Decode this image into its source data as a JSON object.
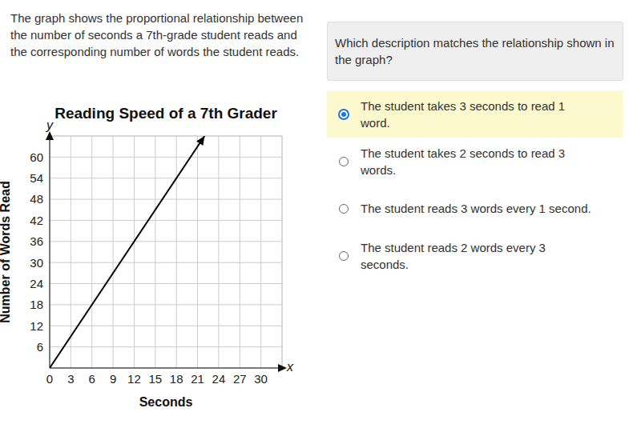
{
  "prompt": "The graph shows the proportional relationship between the number of seconds a 7th-grade student reads and the corresponding number of words the student reads.",
  "question": "Which description matches the relationship shown in the graph?",
  "options": [
    {
      "text": "The student takes 3 seconds to read 1 word.",
      "selected": true
    },
    {
      "text": "The student takes 2 seconds to read 3 words.",
      "selected": false
    },
    {
      "text": "The student reads 3 words every 1 second.",
      "selected": false
    },
    {
      "text": "The student reads 2 words every 3 seconds.",
      "selected": false
    }
  ],
  "chart_data": {
    "type": "line",
    "title": "Reading Speed of a 7th Grader",
    "x_label": "Seconds",
    "y_label": "Number of Words Read",
    "axis_letters": {
      "x": "x",
      "y": "y"
    },
    "x": [
      0,
      22
    ],
    "values": [
      0,
      66
    ],
    "color": "#000000",
    "xlim": [
      0,
      33
    ],
    "ylim": [
      0,
      66
    ],
    "xticks": [
      0,
      3,
      6,
      9,
      12,
      15,
      18,
      21,
      24,
      27,
      30
    ],
    "yticks": [
      6,
      12,
      18,
      24,
      30,
      36,
      42,
      48,
      54,
      60
    ],
    "grid": true
  }
}
